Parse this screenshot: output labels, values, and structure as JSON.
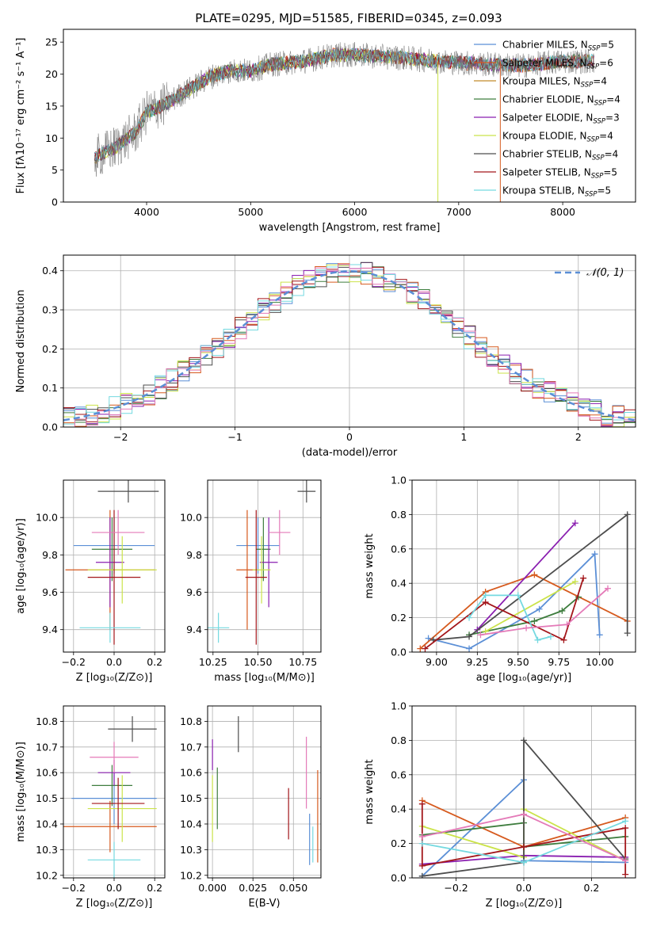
{
  "title": "PLATE=0295, MJD=51585, FIBERID=0345, z=0.093",
  "colors": {
    "chabrier_miles": "#5b8fd6",
    "salpeter_miles": "#d65a1e",
    "kroupa_miles": "#c28a2a",
    "chabrier_elodie": "#3e7d3e",
    "salpeter_elodie": "#8a1fb0",
    "kroupa_elodie": "#cbe34a",
    "chabrier_stelib": "#4d4d4d",
    "salpeter_stelib": "#a3161a",
    "kroupa_stelib": "#74d9e0",
    "pink": "#e47ab8",
    "gaussian": "#5b8fd6"
  },
  "chart_data": [
    {
      "id": "spectrum",
      "type": "line",
      "title": "PLATE=0295, MJD=51585, FIBERID=0345, z=0.093",
      "xlabel": "wavelength [Angstrom, rest frame]",
      "ylabel": "Flux [fλ10⁻¹⁷ erg cm⁻² s⁻¹ A⁻¹]",
      "xlim": [
        3200,
        8700
      ],
      "ylim": [
        0,
        27
      ],
      "xticks": [
        4000,
        5000,
        6000,
        7000,
        8000
      ],
      "yticks": [
        0,
        5,
        10,
        15,
        20,
        25
      ],
      "legend_position": "right",
      "legend": [
        {
          "text": "Chabrier MILES, N_SSP=5",
          "color": "#5b8fd6"
        },
        {
          "text": "Salpeter MILES, N_SSP=6",
          "color": "#d65a1e"
        },
        {
          "text": "Kroupa MILES, N_SSP=4",
          "color": "#c28a2a"
        },
        {
          "text": "Chabrier ELODIE, N_SSP=4",
          "color": "#3e7d3e"
        },
        {
          "text": "Salpeter ELODIE, N_SSP=3",
          "color": "#8a1fb0"
        },
        {
          "text": "Kroupa ELODIE, N_SSP=4",
          "color": "#cbe34a"
        },
        {
          "text": "Chabrier STELIB, N_SSP=4",
          "color": "#4d4d4d"
        },
        {
          "text": "Salpeter STELIB, N_SSP=5",
          "color": "#a3161a"
        },
        {
          "text": "Kroupa STELIB, N_SSP=5",
          "color": "#74d9e0"
        }
      ],
      "continuum": {
        "x": [
          3500,
          3700,
          3900,
          4000,
          4200,
          4400,
          4600,
          4800,
          5000,
          5200,
          5500,
          5800,
          6000,
          6200,
          6500,
          6800,
          7000,
          7300,
          7600,
          8000,
          8300
        ],
        "y": [
          7.0,
          8.5,
          11.0,
          14.0,
          15.5,
          17.5,
          19.5,
          20.5,
          20.5,
          21.5,
          22.0,
          23.0,
          23.0,
          22.8,
          22.5,
          22.0,
          21.8,
          21.5,
          21.3,
          22.0,
          22.0
        ]
      }
    },
    {
      "id": "residuals",
      "type": "histogram",
      "xlabel": "(data-model)/error",
      "ylabel": "Normed distribution",
      "xlim": [
        -2.5,
        2.5
      ],
      "ylim": [
        0,
        0.44
      ],
      "xticks": [
        -2,
        -1,
        0,
        1,
        2
      ],
      "yticks": [
        0.0,
        0.1,
        0.2,
        0.3,
        0.4
      ],
      "legend": "𝒩(0, 1)",
      "bin_edges_start": -2.5,
      "bin_width": 0.1,
      "bins": 50
    },
    {
      "id": "age_vs_Z",
      "type": "errorbar",
      "xlabel": "Z [log₁₀(Z/Z⊙)]",
      "ylabel": "age  [log₁₀(age/yr)]",
      "xlim": [
        -0.25,
        0.25
      ],
      "ylim": [
        9.28,
        10.2
      ],
      "xticks": [
        -0.2,
        0.0,
        0.2
      ],
      "yticks": [
        9.4,
        9.6,
        9.8,
        10.0
      ],
      "points": [
        {
          "x": 0.0,
          "y": 9.85,
          "xerr": 0.2,
          "yerr": 0.15,
          "color": "#5b8fd6"
        },
        {
          "x": -0.02,
          "y": 9.72,
          "xerr": 0.22,
          "yerr": 0.32,
          "color": "#d65a1e"
        },
        {
          "x": -0.01,
          "y": 9.83,
          "xerr": 0.1,
          "yerr": 0.17,
          "color": "#3e7d3e"
        },
        {
          "x": -0.02,
          "y": 9.76,
          "xerr": 0.07,
          "yerr": 0.24,
          "color": "#8a1fb0"
        },
        {
          "x": 0.04,
          "y": 9.72,
          "xerr": 0.17,
          "yerr": 0.18,
          "color": "#cbe34a"
        },
        {
          "x": 0.07,
          "y": 10.14,
          "xerr": 0.15,
          "yerr": 0.06,
          "color": "#4d4d4d"
        },
        {
          "x": 0.0,
          "y": 9.68,
          "xerr": 0.13,
          "yerr": 0.36,
          "color": "#a3161a"
        },
        {
          "x": -0.02,
          "y": 9.41,
          "xerr": 0.15,
          "yerr": 0.08,
          "color": "#74d9e0"
        },
        {
          "x": 0.02,
          "y": 9.92,
          "xerr": 0.13,
          "yerr": 0.12,
          "color": "#e47ab8"
        }
      ]
    },
    {
      "id": "age_vs_mass",
      "type": "errorbar",
      "xlabel": "mass [log₁₀(M/M⊙)]",
      "ylabel": "",
      "xlim": [
        10.22,
        10.85
      ],
      "ylim": [
        9.28,
        10.2
      ],
      "xticks": [
        10.25,
        10.5,
        10.75
      ],
      "yticks": [
        9.4,
        9.6,
        9.8,
        10.0
      ],
      "points": [
        {
          "x": 10.5,
          "y": 9.85,
          "xerr": 0.12,
          "yerr": 0.15,
          "color": "#5b8fd6"
        },
        {
          "x": 10.44,
          "y": 9.72,
          "xerr": 0.06,
          "yerr": 0.32,
          "color": "#d65a1e"
        },
        {
          "x": 10.53,
          "y": 9.83,
          "xerr": 0.04,
          "yerr": 0.17,
          "color": "#3e7d3e"
        },
        {
          "x": 10.56,
          "y": 9.76,
          "xerr": 0.05,
          "yerr": 0.24,
          "color": "#8a1fb0"
        },
        {
          "x": 10.52,
          "y": 9.72,
          "xerr": 0.05,
          "yerr": 0.18,
          "color": "#cbe34a"
        },
        {
          "x": 10.77,
          "y": 10.14,
          "xerr": 0.05,
          "yerr": 0.06,
          "color": "#4d4d4d"
        },
        {
          "x": 10.49,
          "y": 9.68,
          "xerr": 0.06,
          "yerr": 0.36,
          "color": "#a3161a"
        },
        {
          "x": 10.28,
          "y": 9.41,
          "xerr": 0.06,
          "yerr": 0.08,
          "color": "#74d9e0"
        },
        {
          "x": 10.62,
          "y": 9.92,
          "xerr": 0.06,
          "yerr": 0.12,
          "color": "#e47ab8"
        }
      ]
    },
    {
      "id": "weight_vs_age",
      "type": "line",
      "xlabel": "age  [log₁₀(age/yr)]",
      "ylabel": "mass weight",
      "xlim": [
        8.85,
        10.22
      ],
      "ylim": [
        0,
        1.0
      ],
      "xticks": [
        9.0,
        9.25,
        9.5,
        9.75,
        10.0
      ],
      "yticks": [
        0.0,
        0.2,
        0.4,
        0.6,
        0.8,
        1.0
      ],
      "series": [
        {
          "color": "#5b8fd6",
          "x": [
            8.95,
            9.2,
            9.63,
            9.97,
            10.0
          ],
          "y": [
            0.08,
            0.02,
            0.25,
            0.57,
            0.1
          ]
        },
        {
          "color": "#d65a1e",
          "x": [
            8.9,
            9.3,
            9.6,
            10.17
          ],
          "y": [
            0.02,
            0.35,
            0.45,
            0.18
          ]
        },
        {
          "color": "#3e7d3e",
          "x": [
            9.2,
            9.6,
            9.77,
            9.87
          ],
          "y": [
            0.1,
            0.18,
            0.24,
            0.32
          ]
        },
        {
          "color": "#8a1fb0",
          "x": [
            9.25,
            9.85
          ],
          "y": [
            0.13,
            0.75
          ]
        },
        {
          "color": "#cbe34a",
          "x": [
            9.3,
            9.85
          ],
          "y": [
            0.12,
            0.41
          ]
        },
        {
          "color": "#4d4d4d",
          "x": [
            8.98,
            9.2,
            10.17,
            10.17
          ],
          "y": [
            0.07,
            0.09,
            0.8,
            0.11
          ]
        },
        {
          "color": "#a3161a",
          "x": [
            8.93,
            9.3,
            9.78,
            9.9
          ],
          "y": [
            0.02,
            0.29,
            0.07,
            0.43
          ]
        },
        {
          "color": "#74d9e0",
          "x": [
            9.2,
            9.3,
            9.5,
            9.62,
            9.7
          ],
          "y": [
            0.2,
            0.33,
            0.33,
            0.07,
            0.09
          ]
        },
        {
          "color": "#e47ab8",
          "x": [
            9.27,
            9.55,
            9.8,
            10.05
          ],
          "y": [
            0.1,
            0.14,
            0.16,
            0.37
          ]
        }
      ]
    },
    {
      "id": "mass_vs_Z",
      "type": "errorbar",
      "xlabel": "Z [log₁₀(Z/Z⊙)]",
      "ylabel": "mass [log₁₀(M/M⊙)]",
      "xlim": [
        -0.25,
        0.25
      ],
      "ylim": [
        10.19,
        10.86
      ],
      "xticks": [
        -0.2,
        0.0,
        0.2
      ],
      "yticks": [
        10.2,
        10.3,
        10.4,
        10.5,
        10.6,
        10.7,
        10.8
      ],
      "points": [
        {
          "x": 0.0,
          "y": 10.5,
          "xerr": 0.21,
          "yerr": 0.1,
          "color": "#5b8fd6"
        },
        {
          "x": -0.02,
          "y": 10.39,
          "xerr": 0.23,
          "yerr": 0.1,
          "color": "#d65a1e"
        },
        {
          "x": -0.01,
          "y": 10.55,
          "xerr": 0.1,
          "yerr": 0.08,
          "color": "#3e7d3e"
        },
        {
          "x": 0.0,
          "y": 10.6,
          "xerr": 0.08,
          "yerr": 0.05,
          "color": "#8a1fb0"
        },
        {
          "x": 0.04,
          "y": 10.46,
          "xerr": 0.17,
          "yerr": 0.13,
          "color": "#cbe34a"
        },
        {
          "x": 0.09,
          "y": 10.77,
          "xerr": 0.12,
          "yerr": 0.05,
          "color": "#4d4d4d"
        },
        {
          "x": 0.02,
          "y": 10.48,
          "xerr": 0.13,
          "yerr": 0.1,
          "color": "#a3161a"
        },
        {
          "x": 0.0,
          "y": 10.26,
          "xerr": 0.13,
          "yerr": 0.07,
          "color": "#74d9e0"
        },
        {
          "x": 0.0,
          "y": 10.66,
          "xerr": 0.12,
          "yerr": 0.06,
          "color": "#e47ab8"
        }
      ]
    },
    {
      "id": "mass_vs_ebv",
      "type": "errorbar",
      "xlabel": "E(B-V)",
      "ylabel": "",
      "xlim": [
        -0.003,
        0.067
      ],
      "ylim": [
        10.19,
        10.86
      ],
      "xticks": [
        0.0,
        0.025,
        0.05
      ],
      "yticks": [
        10.2,
        10.3,
        10.4,
        10.5,
        10.6,
        10.7,
        10.8
      ],
      "points": [
        {
          "x": 0.06,
          "y": 10.34,
          "xerr": 0,
          "yerr": 0.1,
          "color": "#5b8fd6"
        },
        {
          "x": 0.065,
          "y": 10.43,
          "xerr": 0,
          "yerr": 0.18,
          "color": "#d65a1e"
        },
        {
          "x": 0.003,
          "y": 10.5,
          "xerr": 0,
          "yerr": 0.12,
          "color": "#3e7d3e"
        },
        {
          "x": 0.0,
          "y": 10.67,
          "xerr": 0,
          "yerr": 0.06,
          "color": "#8a1fb0"
        },
        {
          "x": 0.0,
          "y": 10.46,
          "xerr": 0,
          "yerr": 0.13,
          "color": "#cbe34a"
        },
        {
          "x": 0.016,
          "y": 10.75,
          "xerr": 0,
          "yerr": 0.07,
          "color": "#4d4d4d"
        },
        {
          "x": 0.047,
          "y": 10.44,
          "xerr": 0,
          "yerr": 0.1,
          "color": "#a3161a"
        },
        {
          "x": 0.062,
          "y": 10.32,
          "xerr": 0,
          "yerr": 0.07,
          "color": "#74d9e0"
        },
        {
          "x": 0.058,
          "y": 10.6,
          "xerr": 0,
          "yerr": 0.14,
          "color": "#e47ab8"
        }
      ]
    },
    {
      "id": "weight_vs_Z",
      "type": "line",
      "xlabel": "Z [log₁₀(Z/Z⊙)]",
      "ylabel": "mass weight",
      "xlim": [
        -0.33,
        0.33
      ],
      "ylim": [
        0,
        1.0
      ],
      "xticks": [
        -0.2,
        0.0,
        0.2
      ],
      "yticks": [
        0.0,
        0.2,
        0.4,
        0.6,
        0.8,
        1.0
      ],
      "series": [
        {
          "color": "#5b8fd6",
          "x": [
            -0.3,
            0.0,
            0.0,
            0.3
          ],
          "y": [
            0.01,
            0.57,
            0.1,
            0.09
          ]
        },
        {
          "color": "#d65a1e",
          "x": [
            -0.3,
            0.0,
            0.3
          ],
          "y": [
            0.45,
            0.18,
            0.35
          ]
        },
        {
          "color": "#3e7d3e",
          "x": [
            -0.3,
            0.0,
            0.0,
            0.3
          ],
          "y": [
            0.25,
            0.32,
            0.18,
            0.24
          ]
        },
        {
          "color": "#8a1fb0",
          "x": [
            -0.3,
            0.0,
            0.3
          ],
          "y": [
            0.08,
            0.13,
            0.12
          ]
        },
        {
          "color": "#cbe34a",
          "x": [
            -0.3,
            0.0,
            0.0,
            0.3
          ],
          "y": [
            0.3,
            0.12,
            0.4,
            0.1
          ]
        },
        {
          "color": "#4d4d4d",
          "x": [
            -0.3,
            0.0,
            0.0,
            0.3
          ],
          "y": [
            0.01,
            0.09,
            0.8,
            0.11
          ]
        },
        {
          "color": "#a3161a",
          "x": [
            -0.3,
            -0.3,
            0.0,
            0.3,
            0.3
          ],
          "y": [
            0.43,
            0.07,
            0.18,
            0.29,
            0.02
          ]
        },
        {
          "color": "#74d9e0",
          "x": [
            -0.3,
            0.0,
            0.3
          ],
          "y": [
            0.2,
            0.09,
            0.33
          ]
        },
        {
          "color": "#e47ab8",
          "x": [
            -0.3,
            0.0,
            0.3
          ],
          "y": [
            0.24,
            0.37,
            0.1
          ]
        }
      ]
    }
  ]
}
